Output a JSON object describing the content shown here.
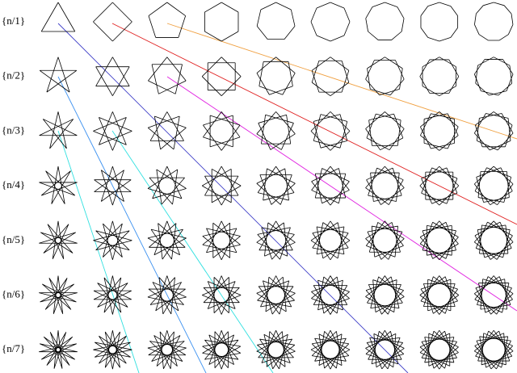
{
  "rows": [
    {
      "label": "{n/1}"
    },
    {
      "label": "{n/2}"
    },
    {
      "label": "{n/3}"
    },
    {
      "label": "{n/4}"
    },
    {
      "label": "{n/5}"
    },
    {
      "label": "{n/6}"
    },
    {
      "label": "{n/7}"
    }
  ]
}
